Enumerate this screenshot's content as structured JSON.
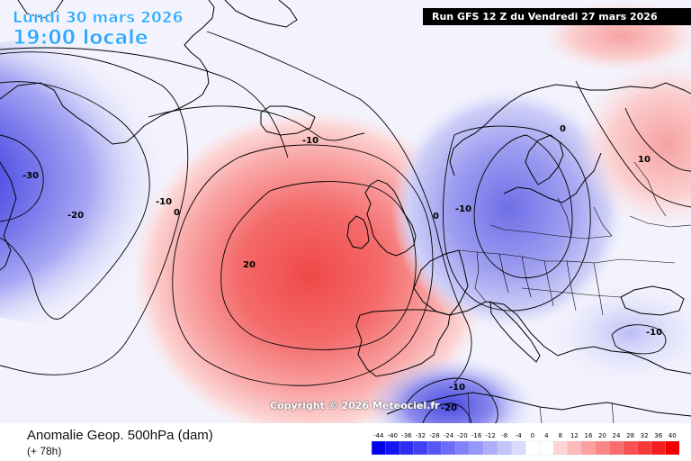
{
  "header": {
    "date": "Lundi 30 mars 2026",
    "local_time": "19:00 locale",
    "run_info": "Run GFS 12 Z du Vendredi 27 mars 2026"
  },
  "footer": {
    "parameter": "Anomalie Geop. 500hPa (dam)",
    "lead_time": "(+ 78h)",
    "copyright": "Copyright © 2026 Meteociel.fr"
  },
  "legend": {
    "ticks": [
      "-44",
      "-40",
      "-36",
      "-32",
      "-28",
      "-24",
      "-20",
      "-16",
      "-12",
      "-8",
      "-4",
      "0",
      "4",
      "8",
      "12",
      "16",
      "20",
      "24",
      "28",
      "32",
      "36",
      "40"
    ],
    "colors": [
      "#0000ee",
      "#1515f0",
      "#2b2bf2",
      "#4040f4",
      "#5656f6",
      "#6c6cf8",
      "#8282fa",
      "#9898fb",
      "#aeaefc",
      "#c4c4fd",
      "#dadafe",
      "#ffffff",
      "#ffffff",
      "#fed4d4",
      "#fdbaba",
      "#fca0a0",
      "#fb8686",
      "#fa6c6c",
      "#f85252",
      "#f63838",
      "#f41e1e",
      "#f00000"
    ]
  },
  "contour_labels": {
    "greenland_low": "-30",
    "greenland_m20": "-20",
    "greenland_m10": "-10",
    "greenland_zero": "0",
    "atlantic_m10": "-10",
    "high_20": "20",
    "europe_zero": "0",
    "europe_m10": "-10",
    "scandinavia_zero": "0",
    "russia_10": "10",
    "balkans_m10": "-10",
    "africa_m10": "-10",
    "africa_m20": "-20"
  },
  "colors": {
    "title_blue": "#33aaff",
    "anomaly_positive": "#f04848",
    "anomaly_negative": "#3c3cd8"
  }
}
